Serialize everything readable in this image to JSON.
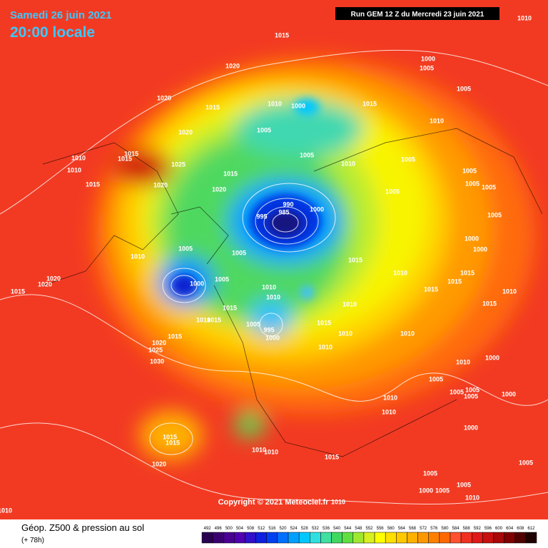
{
  "header": {
    "date": "Samedi 26 juin 2021",
    "time": "20:00 locale",
    "run": "Run GEM 12 Z du Mercredi 23 juin 2021"
  },
  "map": {
    "pressure_labels": [
      1015,
      1020,
      1000,
      1005,
      1020,
      1015,
      1010,
      1000,
      1015,
      1005,
      1005,
      1020,
      1010,
      1015,
      1015,
      1010,
      1010,
      1025,
      1005,
      1010,
      1005,
      1005,
      1015,
      1020,
      1015,
      1020,
      1005,
      1005,
      1005,
      990,
      1000,
      985,
      995,
      1005,
      1000,
      1005,
      1005,
      1000,
      1010,
      1015,
      1010,
      1015,
      1015,
      1020,
      1020,
      1015,
      1000,
      1005,
      1010,
      1010,
      1015,
      1010,
      1015,
      1010,
      1015,
      1010,
      1015,
      1005,
      995,
      1015,
      1000,
      1010,
      1010,
      1010,
      1015,
      1020,
      1025,
      1030,
      1000,
      1010,
      1005,
      1005,
      1005,
      1005,
      1000,
      1010,
      1010,
      1015,
      1015,
      1000,
      1010,
      1010,
      1015,
      1020,
      1005,
      1005,
      1005,
      1000,
      1005,
      1010,
      1010,
      1010,
      1010
    ],
    "copyright": "Copyright © 2021 Meteociel.fr"
  },
  "footer": {
    "title": "Géop. Z500 & pression au sol",
    "lead": "(+ 78h)",
    "scale": [
      492,
      496,
      500,
      504,
      508,
      512,
      516,
      520,
      524,
      528,
      532,
      536,
      540,
      544,
      548,
      552,
      556,
      560,
      564,
      568,
      572,
      576,
      580,
      584,
      588,
      592,
      596,
      600,
      604,
      608,
      612
    ]
  }
}
